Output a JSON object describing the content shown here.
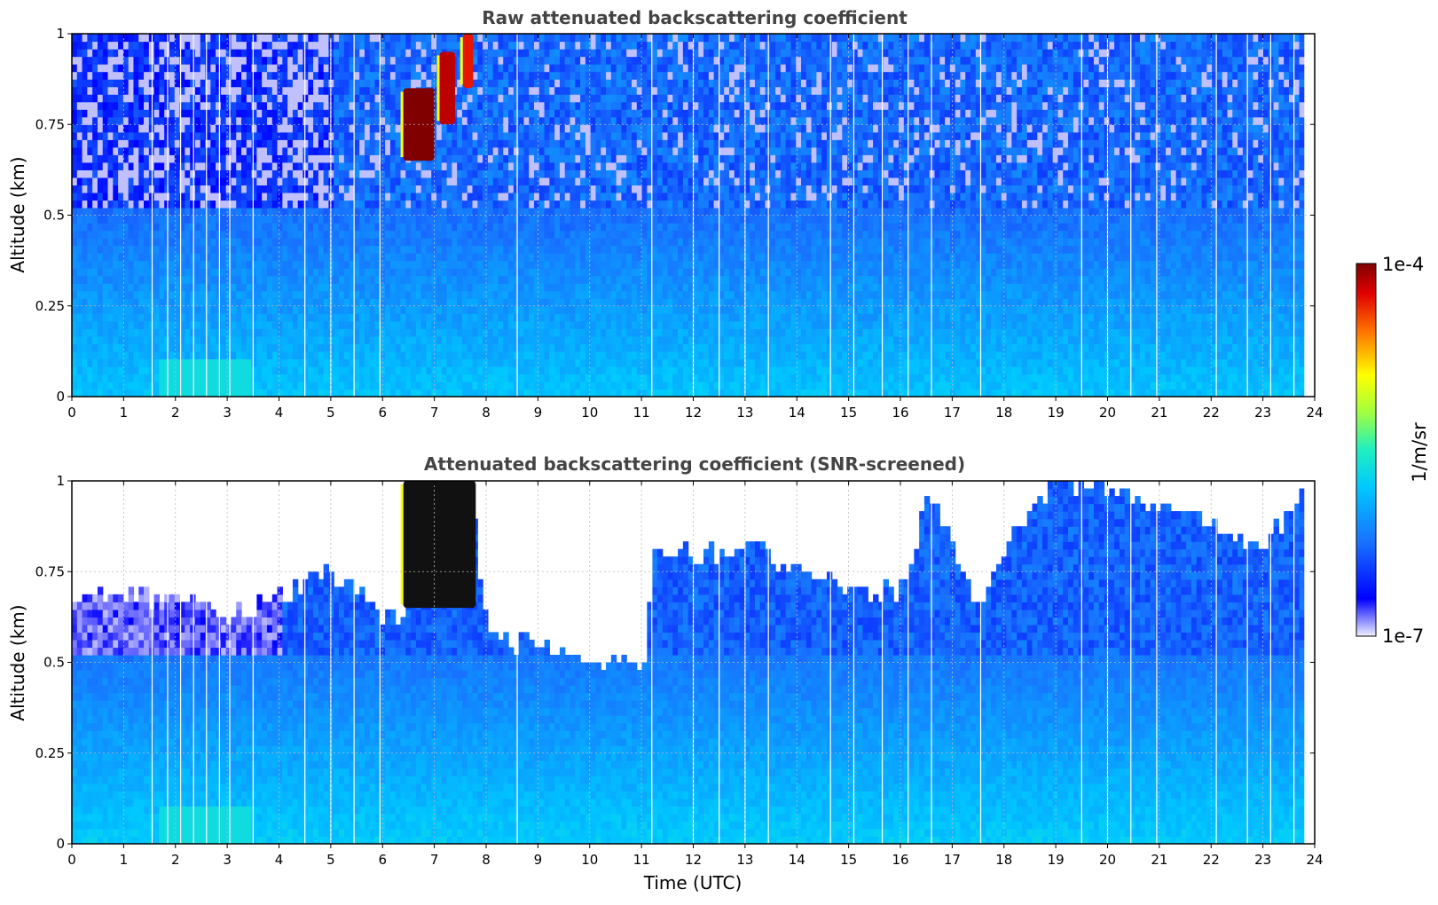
{
  "chart_data": [
    {
      "type": "heatmap",
      "id": "raw",
      "title": "Raw attenuated backscattering coefficient",
      "xlabel": "",
      "ylabel": "Altitude (km)",
      "xlim": [
        0,
        24
      ],
      "ylim": [
        0,
        1
      ],
      "xticks": [
        "0",
        "1",
        "2",
        "3",
        "4",
        "5",
        "6",
        "7",
        "8",
        "9",
        "10",
        "11",
        "12",
        "13",
        "14",
        "15",
        "16",
        "17",
        "18",
        "19",
        "20",
        "21",
        "22",
        "23",
        "24"
      ],
      "yticks": [
        "0",
        "0.25",
        "0.5",
        "0.75",
        "1"
      ],
      "grid": true,
      "data_end_hour": 23.8,
      "gap_hours": [
        1.55,
        1.85,
        2.1,
        2.35,
        2.6,
        2.85,
        3.05,
        3.5,
        4.5,
        5.0,
        5.45,
        5.95,
        8.6,
        11.2,
        12.0,
        12.5,
        13.0,
        13.45,
        14.65,
        15.1,
        15.65,
        16.15,
        16.6,
        17.55,
        19.5,
        20.0,
        20.45,
        20.95,
        22.1,
        22.7,
        23.15,
        23.6
      ],
      "features": [
        {
          "name": "upper-noise",
          "x": [
            0,
            23.8
          ],
          "y": [
            0.5,
            1.0
          ],
          "level": 0.2
        },
        {
          "name": "boundary-layer",
          "x": [
            0,
            23.8
          ],
          "y": [
            0,
            0.5
          ],
          "level": 0.4
        },
        {
          "name": "surface-enhancement",
          "x": [
            1.8,
            3.3
          ],
          "y": [
            0,
            0.1
          ],
          "level": 0.55
        },
        {
          "name": "cloud-1",
          "x": [
            6.4,
            7.0
          ],
          "y": [
            0.65,
            0.85
          ],
          "level": 1.0
        },
        {
          "name": "cloud-2",
          "x": [
            7.1,
            7.4
          ],
          "y": [
            0.75,
            0.95
          ],
          "level": 0.95
        },
        {
          "name": "cloud-3",
          "x": [
            7.55,
            7.75
          ],
          "y": [
            0.85,
            1.0
          ],
          "level": 0.9
        }
      ]
    },
    {
      "type": "heatmap",
      "id": "screened",
      "title": "Attenuated backscattering coefficient (SNR-screened)",
      "xlabel": "Time (UTC)",
      "ylabel": "Altitude (km)",
      "xlim": [
        0,
        24
      ],
      "ylim": [
        0,
        1
      ],
      "xticks": [
        "0",
        "1",
        "2",
        "3",
        "4",
        "5",
        "6",
        "7",
        "8",
        "9",
        "10",
        "11",
        "12",
        "13",
        "14",
        "15",
        "16",
        "17",
        "18",
        "19",
        "20",
        "21",
        "22",
        "23",
        "24"
      ],
      "yticks": [
        "0",
        "0.25",
        "0.5",
        "0.75",
        "1"
      ],
      "grid": true,
      "data_end_hour": 23.8,
      "gap_hours": [
        1.55,
        1.85,
        2.1,
        2.35,
        2.6,
        2.85,
        3.05,
        3.5,
        4.5,
        5.0,
        5.45,
        5.95,
        8.6,
        11.2,
        12.0,
        12.5,
        13.0,
        13.45,
        14.65,
        15.1,
        15.65,
        16.15,
        16.6,
        17.55,
        19.5,
        20.0,
        20.45,
        20.95,
        22.1,
        22.7,
        23.15,
        23.6
      ],
      "valid_top_km": [
        [
          0,
          0.65
        ],
        [
          1,
          0.68
        ],
        [
          2,
          0.66
        ],
        [
          3,
          0.62
        ],
        [
          4,
          0.68
        ],
        [
          5,
          0.74
        ],
        [
          6,
          0.6
        ],
        [
          7,
          0.72
        ],
        [
          7.7,
          0.9
        ],
        [
          8,
          0.55
        ],
        [
          9,
          0.55
        ],
        [
          10,
          0.48
        ],
        [
          11,
          0.5
        ],
        [
          11.2,
          0.8
        ],
        [
          12,
          0.78
        ],
        [
          13,
          0.82
        ],
        [
          14,
          0.72
        ],
        [
          15,
          0.7
        ],
        [
          16,
          0.68
        ],
        [
          16.5,
          0.98
        ],
        [
          17.5,
          0.62
        ],
        [
          18,
          0.82
        ],
        [
          19,
          1.0
        ],
        [
          21,
          0.92
        ],
        [
          22,
          0.88
        ],
        [
          23,
          0.8
        ],
        [
          23.8,
          1.0
        ]
      ],
      "features": [
        {
          "name": "aerosol-layer",
          "x": [
            0,
            4
          ],
          "y": [
            0.5,
            0.7
          ],
          "level": 0.05
        },
        {
          "name": "cloud-core",
          "x": [
            6.4,
            7.8
          ],
          "y": [
            0.65,
            1.0
          ],
          "level": 1.0
        }
      ]
    }
  ],
  "colorbar": {
    "max_label": "1e-4",
    "min_label": "1e-7",
    "unit": "1/m/sr",
    "scale": "log"
  },
  "colors": {
    "title": "#444444",
    "grid": "#bbbbbb",
    "gap": "#ffffff"
  }
}
